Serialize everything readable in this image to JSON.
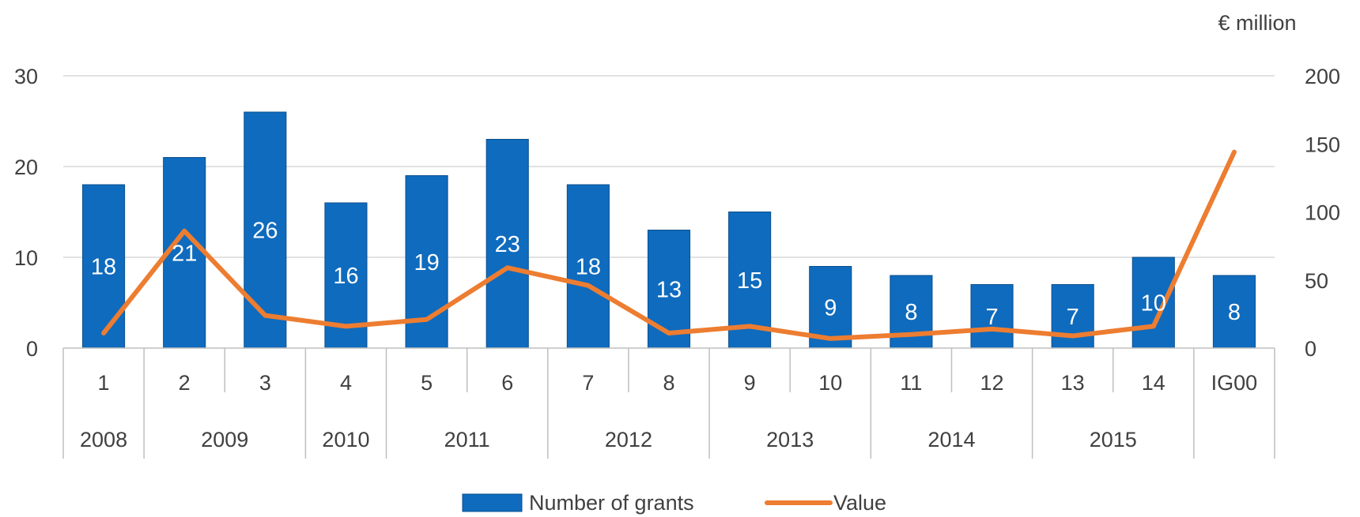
{
  "chart_data": {
    "type": "bar",
    "title": "",
    "right_axis_unit": "€ million",
    "categories": [
      "1",
      "2",
      "3",
      "4",
      "5",
      "6",
      "7",
      "8",
      "9",
      "10",
      "11",
      "12",
      "13",
      "14",
      "IG00"
    ],
    "groups": [
      {
        "label": "2008",
        "span": 1
      },
      {
        "label": "2009",
        "span": 2
      },
      {
        "label": "2010",
        "span": 1
      },
      {
        "label": "2011",
        "span": 2
      },
      {
        "label": "2012",
        "span": 2
      },
      {
        "label": "2013",
        "span": 2
      },
      {
        "label": "2014",
        "span": 2
      },
      {
        "label": "2015",
        "span": 2
      },
      {
        "label": "",
        "span": 1
      }
    ],
    "series": [
      {
        "name": "Number of grants",
        "type": "bar",
        "axis": "left",
        "values": [
          18,
          21,
          26,
          16,
          19,
          23,
          18,
          13,
          15,
          9,
          8,
          7,
          7,
          10,
          8
        ],
        "labels": [
          "18",
          "21",
          "26",
          "16",
          "19",
          "23",
          "18",
          "13",
          "15",
          "9",
          "8",
          "7",
          "7",
          "10",
          "8"
        ]
      },
      {
        "name": "Value",
        "type": "line",
        "axis": "right",
        "values": [
          11,
          86,
          24,
          16,
          21,
          59,
          46,
          11,
          16,
          7,
          10,
          14,
          9,
          16,
          144
        ]
      }
    ],
    "left_axis": {
      "min": 0,
      "max": 30,
      "ticks": [
        "0",
        "10",
        "20",
        "30"
      ]
    },
    "right_axis": {
      "min": 0,
      "max": 200,
      "ticks": [
        "0",
        "50",
        "100",
        "150",
        "200"
      ]
    },
    "grid": true,
    "legend_position": "bottom",
    "colors": {
      "bar": "#0f6bbd",
      "bar_edge": "#0a4f8f",
      "line": "#ed7d31",
      "grid": "#d9d9d9",
      "axis": "#bfbfbf",
      "text": "#404040"
    }
  }
}
